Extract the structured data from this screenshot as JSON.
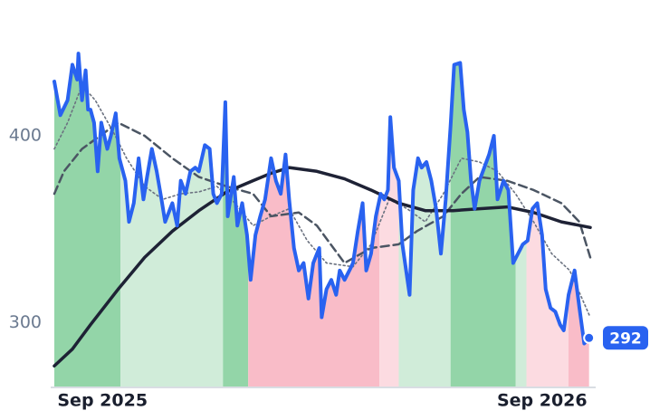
{
  "chart_data": {
    "type": "line",
    "xlim": [
      0,
      445
    ],
    "ylim": [
      266,
      460
    ],
    "xticks": [
      {
        "value": 40,
        "label": "Sep 2025"
      },
      {
        "value": 405,
        "label": "Sep 2026"
      }
    ],
    "yticks": [
      300,
      400
    ],
    "regions": [
      {
        "start": 0,
        "end": 55,
        "color": "#93d5a8"
      },
      {
        "start": 55,
        "end": 140,
        "color": "#d0ecd9"
      },
      {
        "start": 140,
        "end": 161,
        "color": "#93d5a8"
      },
      {
        "start": 161,
        "end": 270,
        "color": "#f9bcc8"
      },
      {
        "start": 270,
        "end": 286,
        "color": "#fcdbe1"
      },
      {
        "start": 286,
        "end": 329,
        "color": "#d0ecd9"
      },
      {
        "start": 329,
        "end": 383,
        "color": "#93d5a8"
      },
      {
        "start": 383,
        "end": 392,
        "color": "#d0ecd9"
      },
      {
        "start": 392,
        "end": 427,
        "color": "#fcdbe1"
      },
      {
        "start": 427,
        "end": 445,
        "color": "#f9bcc8"
      }
    ],
    "series": [
      {
        "color": "#6b7280",
        "style": "dotted",
        "width": 1.6,
        "x": [
          0,
          11,
          23,
          34,
          49,
          60,
          75,
          90,
          105,
          120,
          135,
          150,
          165,
          180,
          195,
          210,
          226,
          248,
          263,
          278,
          293,
          308,
          323,
          338,
          353,
          368,
          383,
          398,
          413,
          428,
          445
        ],
        "values": [
          393,
          407,
          427,
          419,
          402,
          388,
          373,
          366,
          369,
          370,
          373,
          364,
          352,
          357,
          361,
          344,
          332,
          330,
          342,
          366,
          361,
          354,
          369,
          388,
          386,
          381,
          369,
          354,
          337,
          328,
          303
        ]
      },
      {
        "color": "#4b5563",
        "style": "dashed",
        "width": 2.5,
        "x": [
          0,
          8,
          23,
          38,
          53,
          75,
          98,
          120,
          143,
          165,
          180,
          203,
          218,
          241,
          263,
          286,
          301,
          323,
          338,
          353,
          376,
          398,
          421,
          436,
          445
        ],
        "values": [
          369,
          381,
          393,
          400,
          407,
          400,
          388,
          378,
          373,
          369,
          357,
          359,
          352,
          332,
          340,
          342,
          349,
          357,
          369,
          378,
          376,
          371,
          364,
          354,
          335
        ]
      },
      {
        "color": "#1e2235",
        "style": "solid",
        "width": 3.5,
        "x": [
          0,
          15,
          30,
          53,
          75,
          98,
          120,
          143,
          165,
          180,
          195,
          218,
          241,
          263,
          286,
          308,
          331,
          353,
          376,
          398,
          421,
          445
        ],
        "values": [
          277,
          286,
          299,
          318,
          335,
          349,
          360,
          370,
          376,
          380,
          383,
          381,
          377,
          371,
          364,
          360,
          360,
          361,
          362,
          359,
          354,
          351
        ]
      },
      {
        "color": "#2962f0",
        "style": "solid",
        "width": 4,
        "x": [
          0,
          5,
          11,
          15,
          19,
          20,
          23,
          26,
          28,
          30,
          33,
          36,
          39,
          44,
          47,
          51,
          54,
          59,
          62,
          66,
          70,
          74,
          77,
          81,
          85,
          89,
          92,
          98,
          102,
          105,
          109,
          113,
          117,
          120,
          125,
          129,
          132,
          135,
          139,
          142,
          144,
          149,
          152,
          156,
          160,
          163,
          167,
          171,
          175,
          180,
          184,
          188,
          192,
          195,
          199,
          203,
          207,
          211,
          215,
          220,
          222,
          226,
          230,
          234,
          237,
          241,
          245,
          248,
          252,
          256,
          259,
          263,
          267,
          271,
          274,
          277,
          279,
          282,
          286,
          289,
          295,
          298,
          302,
          305,
          309,
          313,
          317,
          321,
          325,
          329,
          332,
          337,
          340,
          343,
          346,
          349,
          353,
          357,
          361,
          365,
          368,
          373,
          377,
          381,
          385,
          389,
          393,
          397,
          401,
          405,
          408,
          412,
          416,
          420,
          423,
          427,
          432,
          436,
          440,
          444
        ],
        "values": [
          429,
          411,
          419,
          438,
          430,
          444,
          419,
          435,
          414,
          414,
          407,
          381,
          407,
          393,
          400,
          412,
          388,
          376,
          354,
          364,
          388,
          366,
          378,
          393,
          381,
          366,
          354,
          364,
          352,
          376,
          369,
          381,
          383,
          381,
          395,
          393,
          369,
          364,
          369,
          418,
          357,
          378,
          352,
          364,
          347,
          323,
          347,
          357,
          366,
          388,
          376,
          369,
          390,
          366,
          340,
          328,
          332,
          313,
          332,
          340,
          303,
          318,
          323,
          315,
          328,
          323,
          328,
          332,
          349,
          364,
          328,
          337,
          357,
          369,
          366,
          371,
          410,
          383,
          376,
          342,
          315,
          371,
          388,
          383,
          386,
          376,
          361,
          337,
          366,
          405,
          438,
          439,
          414,
          402,
          376,
          361,
          376,
          383,
          390,
          400,
          366,
          376,
          371,
          332,
          337,
          342,
          344,
          361,
          364,
          347,
          318,
          308,
          306,
          299,
          296,
          315,
          328,
          308,
          289,
          292
        ]
      }
    ]
  }
}
